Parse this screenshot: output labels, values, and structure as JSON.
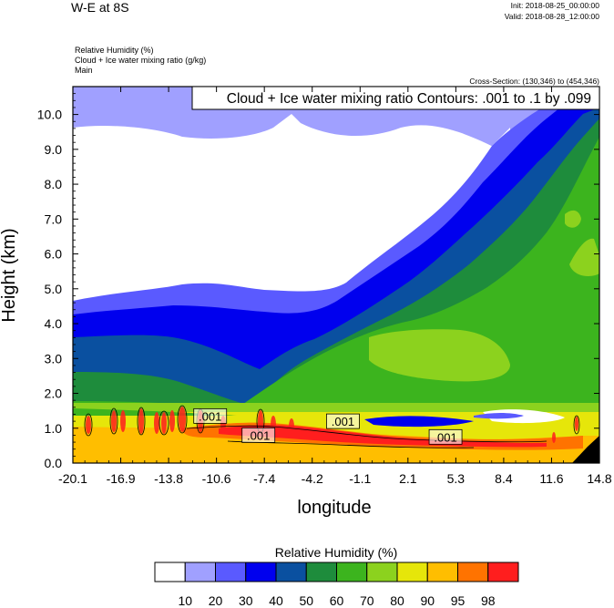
{
  "header": {
    "title": "W-E at 8S",
    "init": "Init: 2018-08-25_00:00:00",
    "valid": "Valid: 2018-08-28_12:00:00",
    "field1": "Relative Humidity   (%)",
    "field2": "Cloud + Ice water mixing ratio   (g/kg)",
    "field3": "Main",
    "cross_section": "Cross-Section: (130,346) to (454,346)"
  },
  "chart_data": {
    "type": "contour",
    "title": "W-E at 8S",
    "contour_info": "Cloud + Ice water mixing ratio Contours: .001 to .1 by .099",
    "xlabel": "longitude",
    "ylabel": "Height (km)",
    "xlim": [
      -20.1,
      14.8
    ],
    "ylim": [
      0.0,
      10.8
    ],
    "xticks": [
      "-20.1",
      "-16.9",
      "-13.8",
      "-10.6",
      "-7.4",
      "-4.2",
      "-1.1",
      "2.1",
      "5.3",
      "8.4",
      "11.6",
      "14.8"
    ],
    "yticks": [
      "0.0",
      "1.0",
      "2.0",
      "3.0",
      "4.0",
      "5.0",
      "6.0",
      "7.0",
      "8.0",
      "9.0",
      "10.0"
    ],
    "contour_labels": [
      {
        "text": ".001",
        "x": -11.0,
        "y": 1.35
      },
      {
        "text": ".001",
        "x": -7.8,
        "y": 0.8
      },
      {
        "text": ".001",
        "x": -2.2,
        "y": 1.2
      },
      {
        "text": ".001",
        "x": 4.6,
        "y": 0.75
      }
    ],
    "colorbar": {
      "title": "Relative Humidity  (%)",
      "levels": [
        "10",
        "20",
        "30",
        "40",
        "50",
        "60",
        "70",
        "80",
        "90",
        "95",
        "98"
      ],
      "colors": [
        "#ffffff",
        "#a0a0ff",
        "#5a5aff",
        "#0000ee",
        "#0a50a0",
        "#1e8c3c",
        "#3cb41e",
        "#8cd21e",
        "#e6e60a",
        "#ffbe00",
        "#ff7300",
        "#ff1e1e"
      ]
    }
  }
}
